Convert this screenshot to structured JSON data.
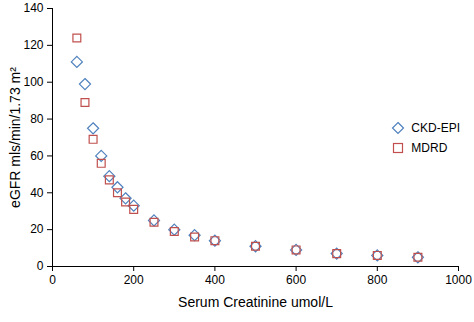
{
  "chart_data": {
    "type": "scatter",
    "x_label": "Serum Creatinine umol/L",
    "y_label": "eGFR mls/min/1.73 m²",
    "x": [
      60,
      80,
      100,
      120,
      140,
      160,
      180,
      200,
      250,
      300,
      350,
      400,
      500,
      600,
      700,
      800,
      900
    ],
    "series": [
      {
        "name": "CKD-EPI",
        "color": "#4f81bd",
        "marker": "diamond",
        "values": [
          111,
          99,
          75,
          60,
          49,
          43,
          37,
          33,
          25,
          20,
          17,
          14,
          11,
          9,
          7,
          6,
          5
        ]
      },
      {
        "name": "MDRD",
        "color": "#c0504d",
        "marker": "square",
        "values": [
          124,
          89,
          69,
          56,
          47,
          40,
          35,
          31,
          24,
          19,
          16,
          14,
          11,
          9,
          7,
          6,
          5
        ]
      }
    ],
    "xlim": [
      0,
      1000
    ],
    "xticks": [
      0,
      200,
      400,
      600,
      800,
      1000
    ],
    "ylim": [
      0,
      140
    ],
    "yticks": [
      0,
      20,
      40,
      60,
      80,
      100,
      120,
      140
    ],
    "grid": false,
    "legend": "right"
  }
}
